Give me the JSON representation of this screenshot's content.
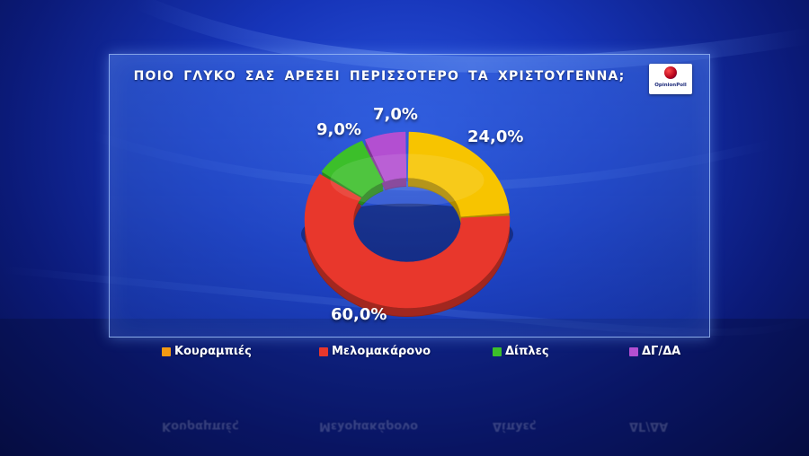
{
  "chart_data": {
    "type": "pie",
    "title": "ΠΟΙΟ ΓΛΥΚΟ ΣΑΣ ΑΡΕΣΕΙ ΠΕΡΙΣΣΟΤΕΡΟ ΤΑ ΧΡΙΣΤΟΥΓΕΝΝΑ;",
    "categories": [
      "Κουραμπιές",
      "Μελομακάρονο",
      "Δίπλες",
      "ΔΓ/ΔΑ"
    ],
    "values": [
      24.0,
      60.0,
      9.0,
      7.0
    ],
    "value_labels": [
      "24,0%",
      "60,0%",
      "9,0%",
      "7,0%"
    ],
    "colors": [
      "#f7c400",
      "#e8372c",
      "#3cbf2a",
      "#b34fd1"
    ],
    "legend_colors": [
      "#f39a12",
      "#e8372c",
      "#3cbf2a",
      "#b34fd1"
    ],
    "style": "donut",
    "legend_position": "bottom"
  },
  "logo": {
    "text": "OpinionPoll"
  }
}
